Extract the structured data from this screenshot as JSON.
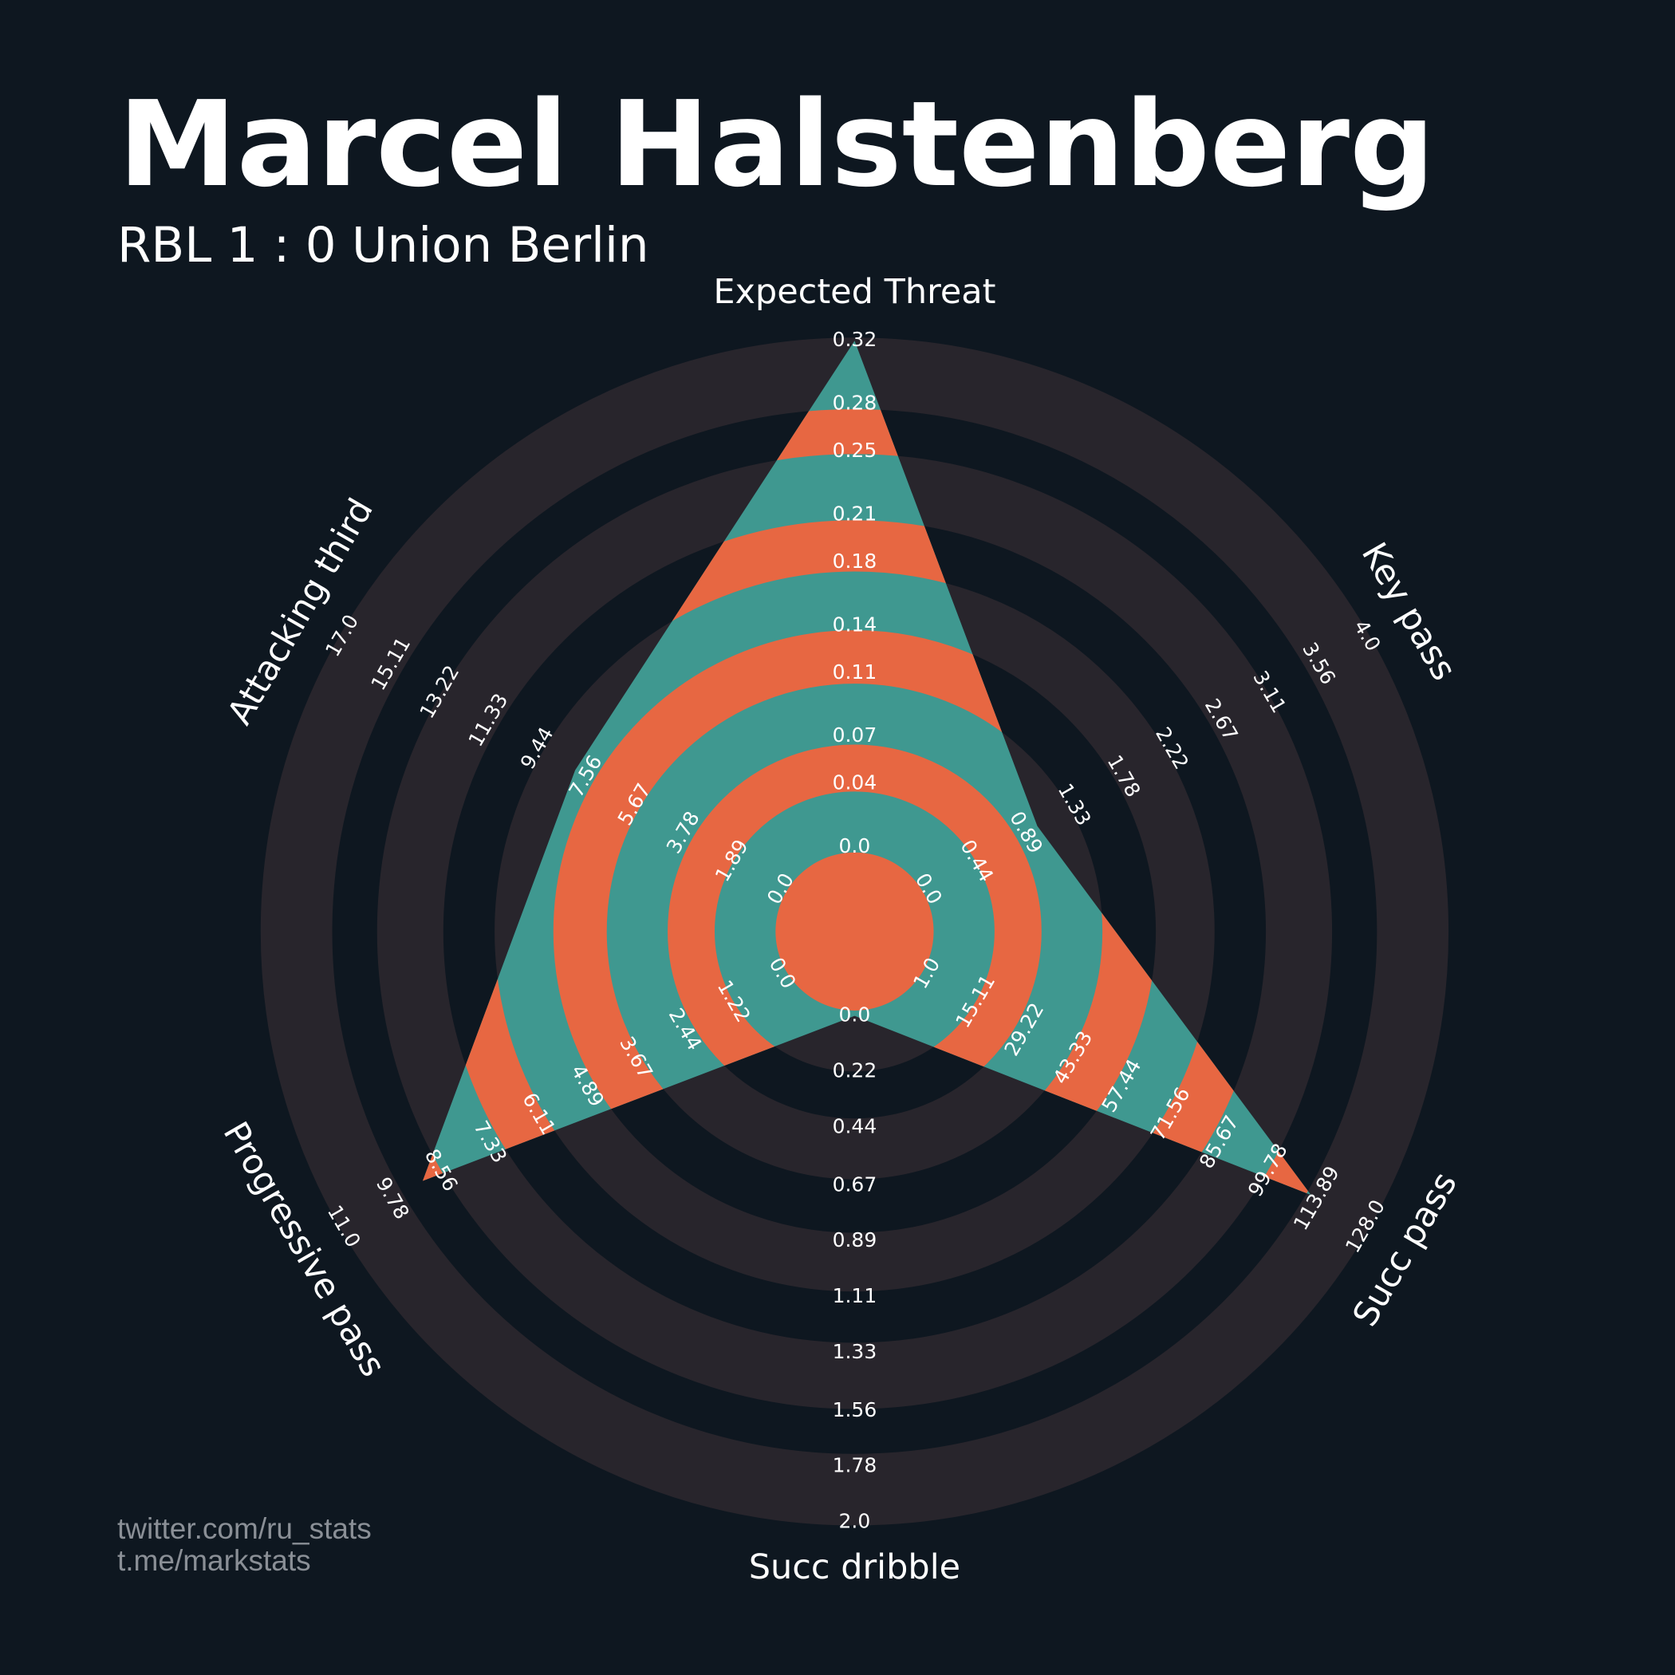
{
  "chart_data": {
    "type": "radar",
    "title": "Marcel Halstenberg",
    "subtitle": "RBL 1 : 0 Union Berlin",
    "credits": [
      "twitter.com/ru_stats",
      "t.me/markstats"
    ],
    "categories": [
      "Expected Threat",
      "Key pass",
      "Succ pass",
      "Succ dribble",
      "Progressive pass",
      "Attacking third"
    ],
    "values": [
      0.32,
      1,
      112,
      0,
      9,
      8
    ],
    "colors": {
      "background": "#0e1720",
      "ring": "#28252c",
      "fill": "#3f9890",
      "alt_fill": "#e76742"
    },
    "axes": [
      {
        "lim": [
          0,
          0.32
        ],
        "ticks": [
          {
            "value": 0,
            "label": "0.0"
          },
          0.04,
          0.07,
          0.11,
          0.14,
          0.18,
          0.21,
          0.25,
          0.28,
          0.32
        ]
      },
      {
        "lim": [
          0,
          4
        ],
        "ticks": [
          {
            "value": 0,
            "label": "0.0"
          },
          0.44,
          0.89,
          1.33,
          1.78,
          2.22,
          2.67,
          3.11,
          3.56,
          {
            "value": 4,
            "label": "4.0"
          }
        ]
      },
      {
        "lim": [
          1,
          128
        ],
        "ticks": [
          {
            "value": 1,
            "label": "1.0"
          },
          15.11,
          29.22,
          43.33,
          57.44,
          71.56,
          85.67,
          99.78,
          113.89,
          {
            "value": 128,
            "label": "128.0"
          }
        ]
      },
      {
        "lim": [
          0,
          2
        ],
        "ticks": [
          {
            "value": 0,
            "label": "0.0"
          },
          0.22,
          0.44,
          0.67,
          0.89,
          1.11,
          1.33,
          1.56,
          1.78,
          {
            "value": 2,
            "label": "2.0"
          }
        ]
      },
      {
        "lim": [
          0,
          11
        ],
        "ticks": [
          {
            "value": 0,
            "label": "0.0"
          },
          1.22,
          2.44,
          3.67,
          4.89,
          6.11,
          7.33,
          8.56,
          9.78,
          {
            "value": 11,
            "label": "11.0"
          }
        ]
      },
      {
        "lim": [
          0,
          17
        ],
        "ticks": [
          {
            "value": 0,
            "label": "0.0"
          },
          1.89,
          3.78,
          5.67,
          7.56,
          9.44,
          11.33,
          13.22,
          15.11,
          {
            "value": 17,
            "label": "17.0"
          }
        ]
      }
    ]
  }
}
